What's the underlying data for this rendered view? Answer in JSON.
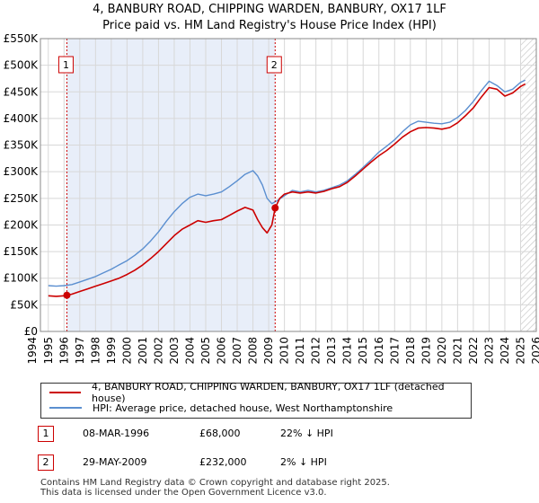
{
  "chart_data": {
    "type": "line",
    "title": "4, BANBURY ROAD, CHIPPING WARDEN, BANBURY, OX17 1LF",
    "subtitle": "Price paid vs. HM Land Registry's House Price Index (HPI)",
    "xlim": [
      1994.5,
      2026.0
    ],
    "ylim": [
      0,
      550000
    ],
    "x_ticks": [
      1994,
      1995,
      1996,
      1997,
      1998,
      1999,
      2000,
      2001,
      2002,
      2003,
      2004,
      2005,
      2006,
      2007,
      2008,
      2009,
      2010,
      2011,
      2012,
      2013,
      2014,
      2015,
      2016,
      2017,
      2018,
      2019,
      2020,
      2021,
      2022,
      2023,
      2024,
      2025,
      2026
    ],
    "x_tick_labels": [
      "1994",
      "1995",
      "1996",
      "1997",
      "1998",
      "1999",
      "2000",
      "2001",
      "2002",
      "2003",
      "2004",
      "2005",
      "2006",
      "2007",
      "2008",
      "2009",
      "2010",
      "2011",
      "2012",
      "2013",
      "2014",
      "2015",
      "2016",
      "2017",
      "2018",
      "2019",
      "2020",
      "2021",
      "2022",
      "2023",
      "2024",
      "2025",
      "2026"
    ],
    "y_ticks": [
      0,
      50000,
      100000,
      150000,
      200000,
      250000,
      300000,
      350000,
      400000,
      450000,
      500000,
      550000
    ],
    "y_tick_labels": [
      "£0",
      "£50K",
      "£100K",
      "£150K",
      "£200K",
      "£250K",
      "£300K",
      "£350K",
      "£400K",
      "£450K",
      "£500K",
      "£550K"
    ],
    "highlight_range": [
      1996.18,
      2009.41
    ],
    "projection_start": 2025.0,
    "sale_markers": [
      {
        "label": "1",
        "x": 1996.18,
        "y": 68000
      },
      {
        "label": "2",
        "x": 2009.41,
        "y": 232000
      }
    ],
    "series": [
      {
        "name": "4, BANBURY ROAD, CHIPPING WARDEN, BANBURY, OX17 1LF (detached house)",
        "color": "#cc0000",
        "x": [
          1995.0,
          1995.5,
          1996.0,
          1996.18,
          1996.5,
          1997.0,
          1997.5,
          1998.0,
          1998.5,
          1999.0,
          1999.5,
          2000.0,
          2000.5,
          2001.0,
          2001.5,
          2002.0,
          2002.5,
          2003.0,
          2003.5,
          2004.0,
          2004.5,
          2005.0,
          2005.5,
          2006.0,
          2006.5,
          2007.0,
          2007.5,
          2008.0,
          2008.3,
          2008.6,
          2008.9,
          2009.2,
          2009.41,
          2009.7,
          2010.0,
          2010.5,
          2011.0,
          2011.5,
          2012.0,
          2012.5,
          2013.0,
          2013.5,
          2014.0,
          2014.5,
          2015.0,
          2015.5,
          2016.0,
          2016.5,
          2017.0,
          2017.5,
          2018.0,
          2018.5,
          2019.0,
          2019.5,
          2020.0,
          2020.5,
          2021.0,
          2021.5,
          2022.0,
          2022.5,
          2023.0,
          2023.5,
          2024.0,
          2024.5,
          2025.0,
          2025.3
        ],
        "values": [
          67000,
          66000,
          67000,
          68000,
          70000,
          75000,
          80000,
          85000,
          90000,
          95000,
          100000,
          107000,
          115000,
          125000,
          137000,
          150000,
          165000,
          180000,
          192000,
          200000,
          208000,
          205000,
          208000,
          210000,
          218000,
          226000,
          233000,
          228000,
          210000,
          195000,
          185000,
          200000,
          232000,
          250000,
          258000,
          262000,
          260000,
          262000,
          260000,
          263000,
          268000,
          272000,
          280000,
          292000,
          305000,
          318000,
          330000,
          340000,
          352000,
          365000,
          375000,
          382000,
          383000,
          382000,
          380000,
          383000,
          392000,
          405000,
          420000,
          440000,
          458000,
          455000,
          442000,
          448000,
          460000,
          465000
        ]
      },
      {
        "name": "HPI: Average price, detached house, West Northamptonshire",
        "color": "#5b8fd0",
        "x": [
          1995.0,
          1995.5,
          1996.0,
          1996.5,
          1997.0,
          1997.5,
          1998.0,
          1998.5,
          1999.0,
          1999.5,
          2000.0,
          2000.5,
          2001.0,
          2001.5,
          2002.0,
          2002.5,
          2003.0,
          2003.5,
          2004.0,
          2004.5,
          2005.0,
          2005.5,
          2006.0,
          2006.5,
          2007.0,
          2007.5,
          2008.0,
          2008.3,
          2008.6,
          2008.9,
          2009.2,
          2009.5,
          2010.0,
          2010.5,
          2011.0,
          2011.5,
          2012.0,
          2012.5,
          2013.0,
          2013.5,
          2014.0,
          2014.5,
          2015.0,
          2015.5,
          2016.0,
          2016.5,
          2017.0,
          2017.5,
          2018.0,
          2018.5,
          2019.0,
          2019.5,
          2020.0,
          2020.5,
          2021.0,
          2021.5,
          2022.0,
          2022.5,
          2023.0,
          2023.5,
          2024.0,
          2024.5,
          2025.0,
          2025.3
        ],
        "values": [
          86000,
          85000,
          86000,
          88000,
          93000,
          98000,
          103000,
          110000,
          117000,
          125000,
          133000,
          143000,
          155000,
          170000,
          187000,
          207000,
          225000,
          240000,
          252000,
          258000,
          255000,
          258000,
          262000,
          272000,
          283000,
          295000,
          302000,
          292000,
          275000,
          250000,
          240000,
          245000,
          255000,
          265000,
          262000,
          265000,
          262000,
          265000,
          270000,
          275000,
          283000,
          295000,
          308000,
          322000,
          337000,
          348000,
          360000,
          375000,
          388000,
          395000,
          393000,
          391000,
          390000,
          393000,
          402000,
          415000,
          432000,
          452000,
          470000,
          462000,
          450000,
          455000,
          468000,
          472000
        ]
      }
    ]
  },
  "legend": {
    "items": [
      {
        "label": "4, BANBURY ROAD, CHIPPING WARDEN, BANBURY, OX17 1LF (detached house)",
        "color": "#cc0000"
      },
      {
        "label": "HPI: Average price, detached house, West Northamptonshire",
        "color": "#5b8fd0"
      }
    ]
  },
  "sales": [
    {
      "num": "1",
      "date": "08-MAR-1996",
      "price": "£68,000",
      "hpi": "22% ↓ HPI"
    },
    {
      "num": "2",
      "date": "29-MAY-2009",
      "price": "£232,000",
      "hpi": "2% ↓ HPI"
    }
  ],
  "footer": {
    "line1": "Contains HM Land Registry data © Crown copyright and database right 2025.",
    "line2": "This data is licensed under the Open Government Licence v3.0."
  }
}
